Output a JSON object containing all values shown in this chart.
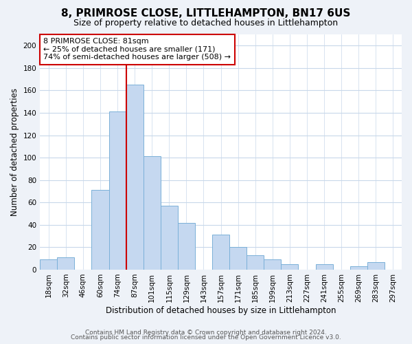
{
  "title": "8, PRIMROSE CLOSE, LITTLEHAMPTON, BN17 6US",
  "subtitle": "Size of property relative to detached houses in Littlehampton",
  "xlabel": "Distribution of detached houses by size in Littlehampton",
  "ylabel": "Number of detached properties",
  "bin_labels": [
    "18sqm",
    "32sqm",
    "46sqm",
    "60sqm",
    "74sqm",
    "87sqm",
    "101sqm",
    "115sqm",
    "129sqm",
    "143sqm",
    "157sqm",
    "171sqm",
    "185sqm",
    "199sqm",
    "213sqm",
    "227sqm",
    "241sqm",
    "255sqm",
    "269sqm",
    "283sqm",
    "297sqm"
  ],
  "bar_values": [
    9,
    11,
    0,
    71,
    141,
    165,
    101,
    57,
    42,
    0,
    31,
    20,
    13,
    9,
    5,
    0,
    5,
    0,
    3,
    7,
    0
  ],
  "bar_color": "#c5d8f0",
  "bar_edge_color": "#7ab0d8",
  "vline_x_index": 4.5,
  "vline_color": "#cc0000",
  "annotation_text": "8 PRIMROSE CLOSE: 81sqm\n← 25% of detached houses are smaller (171)\n74% of semi-detached houses are larger (508) →",
  "annotation_box_color": "white",
  "annotation_box_edge_color": "#cc0000",
  "ylim": [
    0,
    210
  ],
  "yticks": [
    0,
    20,
    40,
    60,
    80,
    100,
    120,
    140,
    160,
    180,
    200
  ],
  "footer_line1": "Contains HM Land Registry data © Crown copyright and database right 2024.",
  "footer_line2": "Contains public sector information licensed under the Open Government Licence v3.0.",
  "bg_color": "#eef2f8",
  "plot_bg_color": "#ffffff",
  "grid_color": "#c8d8ea",
  "title_fontsize": 11,
  "subtitle_fontsize": 9,
  "axis_label_fontsize": 8.5,
  "tick_fontsize": 7.5,
  "footer_fontsize": 6.5,
  "annotation_fontsize": 8
}
